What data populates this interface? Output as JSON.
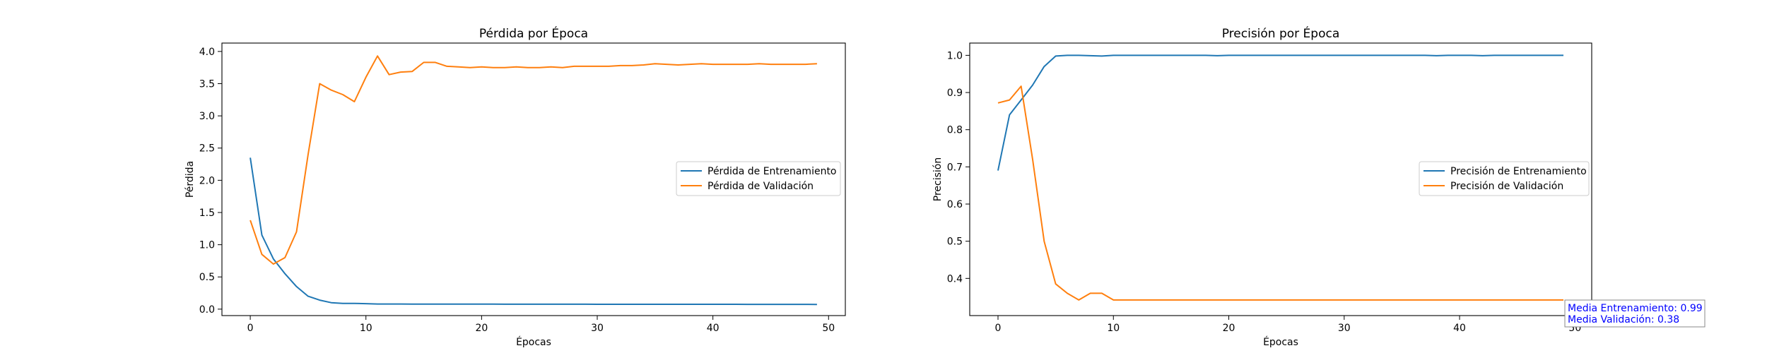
{
  "colors": {
    "series1": "#1f77b4",
    "series2": "#ff7f0e",
    "annotation": "#0000ff"
  },
  "chart_data": [
    {
      "type": "line",
      "title": "Pérdida por Época",
      "xlabel": "Épocas",
      "ylabel": "Pérdida",
      "xlim": [
        -2.45,
        51.45
      ],
      "ylim": [
        -0.1,
        4.13
      ],
      "xticks": [
        0,
        10,
        20,
        30,
        40,
        50
      ],
      "yticks": [
        0.0,
        0.5,
        1.0,
        1.5,
        2.0,
        2.5,
        3.0,
        3.5,
        4.0
      ],
      "ytick_labels": [
        "0.0",
        "0.5",
        "1.0",
        "1.5",
        "2.0",
        "2.5",
        "3.0",
        "3.5",
        "4.0"
      ],
      "legend_position": "center-right",
      "series": [
        {
          "name": "Pérdida de Entrenamiento",
          "values": [
            2.35,
            1.15,
            0.78,
            0.55,
            0.35,
            0.2,
            0.14,
            0.1,
            0.09,
            0.09,
            0.085,
            0.08,
            0.08,
            0.08,
            0.078,
            0.078,
            0.077,
            0.077,
            0.077,
            0.077,
            0.077,
            0.077,
            0.076,
            0.076,
            0.076,
            0.076,
            0.076,
            0.076,
            0.076,
            0.076,
            0.075,
            0.075,
            0.075,
            0.075,
            0.075,
            0.075,
            0.075,
            0.075,
            0.075,
            0.075,
            0.075,
            0.075,
            0.075,
            0.074,
            0.074,
            0.074,
            0.074,
            0.074,
            0.074,
            0.073
          ]
        },
        {
          "name": "Pérdida de Validación",
          "values": [
            1.38,
            0.85,
            0.7,
            0.8,
            1.2,
            2.4,
            3.5,
            3.4,
            3.33,
            3.22,
            3.6,
            3.93,
            3.64,
            3.68,
            3.69,
            3.83,
            3.83,
            3.77,
            3.76,
            3.75,
            3.76,
            3.75,
            3.75,
            3.76,
            3.75,
            3.75,
            3.76,
            3.75,
            3.77,
            3.77,
            3.77,
            3.77,
            3.78,
            3.78,
            3.79,
            3.81,
            3.8,
            3.79,
            3.8,
            3.81,
            3.8,
            3.8,
            3.8,
            3.8,
            3.81,
            3.8,
            3.8,
            3.8,
            3.8,
            3.81
          ]
        }
      ]
    },
    {
      "type": "line",
      "title": "Precisión por Época",
      "xlabel": "Épocas",
      "ylabel": "Precisión",
      "xlim": [
        -2.45,
        51.45
      ],
      "ylim": [
        0.3,
        1.033
      ],
      "xticks": [
        0,
        10,
        20,
        30,
        40,
        50
      ],
      "yticks": [
        0.4,
        0.5,
        0.6,
        0.7,
        0.8,
        0.9,
        1.0
      ],
      "ytick_labels": [
        "0.4",
        "0.5",
        "0.6",
        "0.7",
        "0.8",
        "0.9",
        "1.0"
      ],
      "legend_position": "center-right",
      "series": [
        {
          "name": "Precisión de Entrenamiento",
          "values": [
            0.69,
            0.84,
            0.88,
            0.92,
            0.97,
            0.998,
            1.0,
            1.0,
            0.999,
            0.998,
            1.0,
            1.0,
            1.0,
            1.0,
            1.0,
            1.0,
            1.0,
            1.0,
            1.0,
            0.999,
            1.0,
            1.0,
            1.0,
            1.0,
            1.0,
            1.0,
            1.0,
            1.0,
            1.0,
            1.0,
            1.0,
            1.0,
            1.0,
            1.0,
            1.0,
            1.0,
            1.0,
            1.0,
            0.999,
            1.0,
            1.0,
            1.0,
            0.999,
            1.0,
            1.0,
            1.0,
            1.0,
            1.0,
            1.0,
            1.0
          ]
        },
        {
          "name": "Precisión de Validación",
          "values": [
            0.872,
            0.88,
            0.917,
            0.72,
            0.5,
            0.385,
            0.36,
            0.342,
            0.36,
            0.36,
            0.342,
            0.342,
            0.342,
            0.342,
            0.342,
            0.342,
            0.342,
            0.342,
            0.342,
            0.342,
            0.342,
            0.342,
            0.342,
            0.342,
            0.342,
            0.342,
            0.342,
            0.342,
            0.342,
            0.342,
            0.342,
            0.342,
            0.342,
            0.342,
            0.342,
            0.342,
            0.342,
            0.342,
            0.342,
            0.342,
            0.342,
            0.342,
            0.342,
            0.342,
            0.342,
            0.342,
            0.342,
            0.342,
            0.342,
            0.342
          ]
        }
      ],
      "annotation": [
        "Media Entrenamiento: 0.99",
        "Media Validación: 0.38"
      ]
    }
  ]
}
